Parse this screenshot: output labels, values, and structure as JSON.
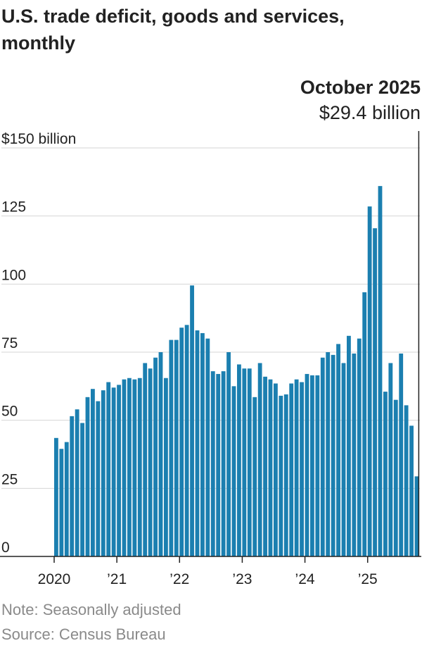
{
  "title": "U.S. trade deficit, goods and services, monthly",
  "note": "Note: Seasonally adjusted",
  "source": "Source: Census Bureau",
  "chart_data": {
    "type": "bar",
    "y_unit_label": "$150 billion",
    "ylim": [
      0,
      150
    ],
    "y_ticks": [
      0,
      25,
      50,
      75,
      100,
      125,
      150
    ],
    "y_tick_labels": [
      "0",
      "25",
      "50",
      "75",
      "100",
      "125",
      "$150 billion"
    ],
    "x_tick_labels": [
      {
        "label": "2020",
        "month": "2020-01"
      },
      {
        "label": "’21",
        "month": "2021-01"
      },
      {
        "label": "’22",
        "month": "2022-01"
      },
      {
        "label": "’23",
        "month": "2023-01"
      },
      {
        "label": "’24",
        "month": "2024-01"
      },
      {
        "label": "’25",
        "month": "2025-01"
      }
    ],
    "grid": true,
    "bar_color": "#1b7fb0",
    "annotation": {
      "label": "October 2025",
      "value": "$29.4 billion",
      "month": "2025-10"
    },
    "months": [
      "2020-01",
      "2020-02",
      "2020-03",
      "2020-04",
      "2020-05",
      "2020-06",
      "2020-07",
      "2020-08",
      "2020-09",
      "2020-10",
      "2020-11",
      "2020-12",
      "2021-01",
      "2021-02",
      "2021-03",
      "2021-04",
      "2021-05",
      "2021-06",
      "2021-07",
      "2021-08",
      "2021-09",
      "2021-10",
      "2021-11",
      "2021-12",
      "2022-01",
      "2022-02",
      "2022-03",
      "2022-04",
      "2022-05",
      "2022-06",
      "2022-07",
      "2022-08",
      "2022-09",
      "2022-10",
      "2022-11",
      "2022-12",
      "2023-01",
      "2023-02",
      "2023-03",
      "2023-04",
      "2023-05",
      "2023-06",
      "2023-07",
      "2023-08",
      "2023-09",
      "2023-10",
      "2023-11",
      "2023-12",
      "2024-01",
      "2024-02",
      "2024-03",
      "2024-04",
      "2024-05",
      "2024-06",
      "2024-07",
      "2024-08",
      "2024-09",
      "2024-10",
      "2024-11",
      "2024-12",
      "2025-01",
      "2025-02",
      "2025-03",
      "2025-04",
      "2025-05",
      "2025-06",
      "2025-07",
      "2025-08",
      "2025-09",
      "2025-10"
    ],
    "values": [
      43.5,
      39.5,
      42,
      51.5,
      54,
      49,
      58.5,
      61.5,
      57,
      61,
      64,
      62,
      63,
      65,
      65.5,
      65,
      65.5,
      71,
      69,
      73,
      75,
      65.5,
      79.5,
      79.5,
      84,
      85,
      99.5,
      83,
      82,
      80,
      68,
      67,
      68,
      75,
      62.5,
      70.5,
      69,
      69,
      58.5,
      71,
      66,
      65,
      63.5,
      59,
      59.5,
      63.5,
      65,
      64,
      67,
      66.5,
      66.5,
      73,
      75,
      74,
      78,
      71,
      81,
      74.5,
      80,
      97,
      128.5,
      120.5,
      136,
      60.5,
      71,
      57.5,
      74.5,
      55.5,
      48,
      29.4
    ]
  }
}
